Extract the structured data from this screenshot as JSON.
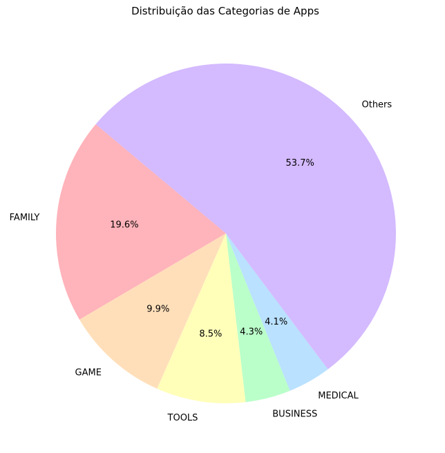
{
  "chart_data": {
    "type": "pie",
    "title": "Distribuição das Categorias de Apps",
    "categories": [
      "FAMILY",
      "GAME",
      "TOOLS",
      "BUSINESS",
      "MEDICAL",
      "Others"
    ],
    "values": [
      19.6,
      9.9,
      8.5,
      4.3,
      4.1,
      53.7
    ],
    "percent_labels": [
      "19.6%",
      "9.9%",
      "8.5%",
      "4.3%",
      "4.1%",
      "53.7%"
    ],
    "colors": [
      "#ffb3ba",
      "#ffdfba",
      "#ffffba",
      "#baffc9",
      "#bae1ff",
      "#d4baff"
    ],
    "start_angle_deg": 140,
    "direction": "counterclockwise",
    "edge_color": "#ffffff"
  }
}
